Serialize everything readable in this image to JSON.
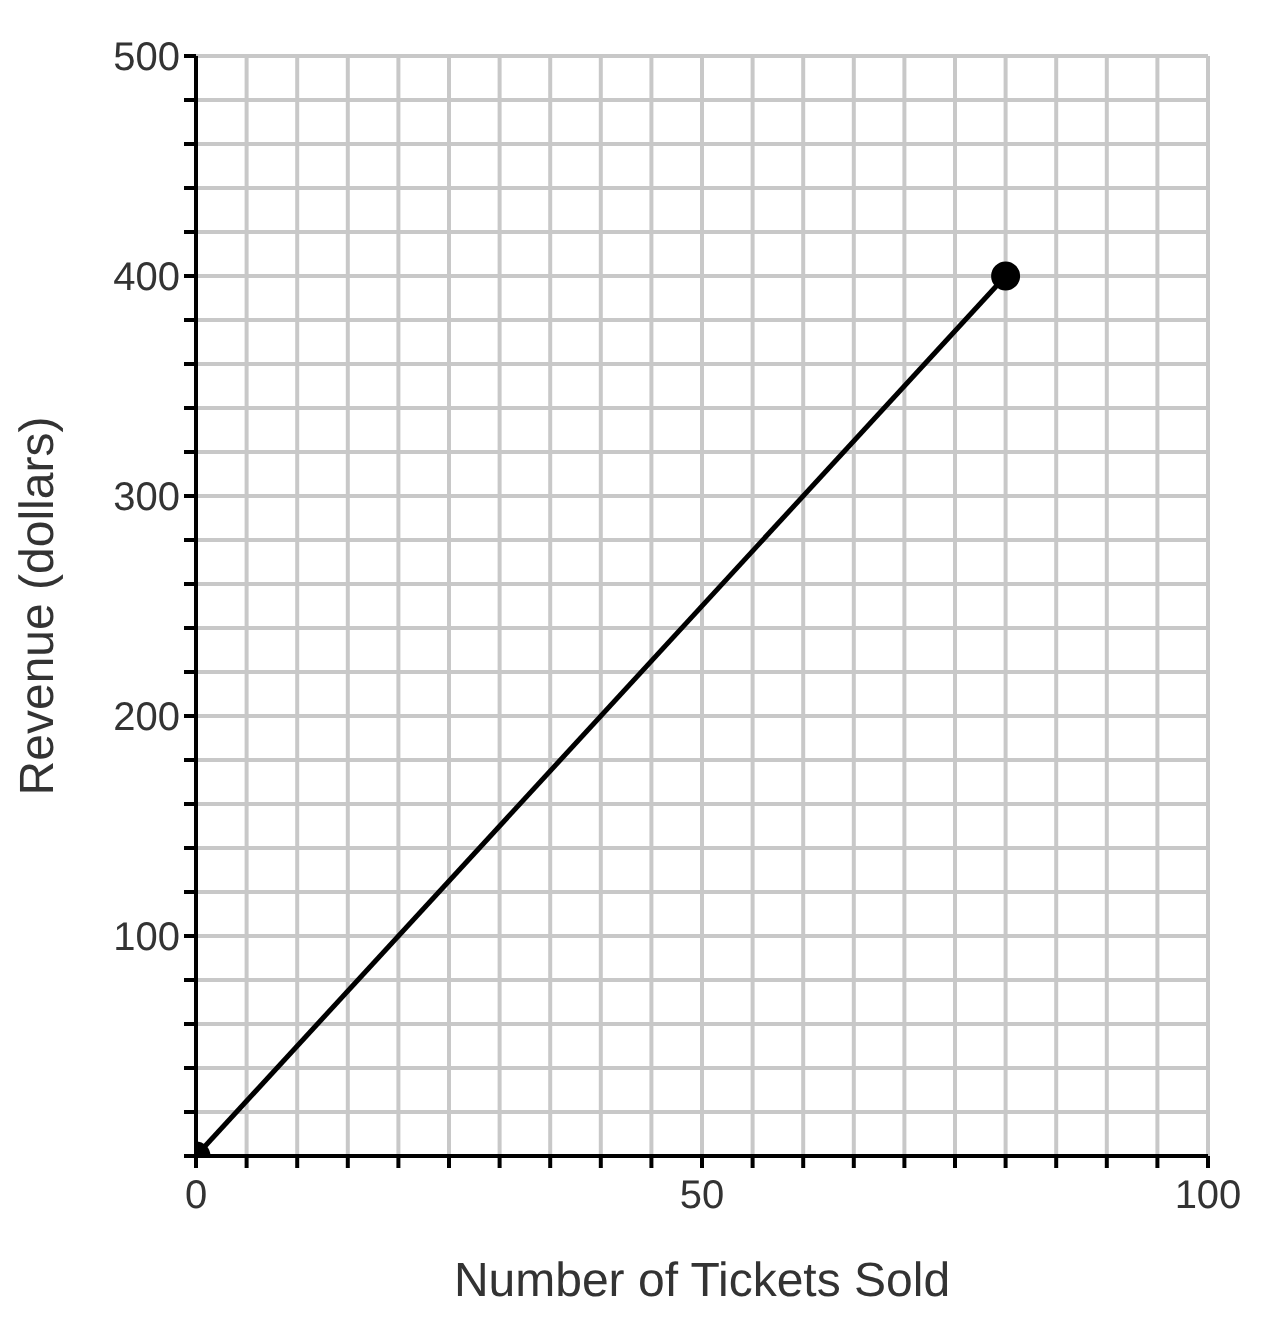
{
  "chart_data": {
    "type": "line",
    "xlabel": "Number of Tickets Sold",
    "ylabel": "Revenue (dollars)",
    "x": [
      0,
      80
    ],
    "series": [
      {
        "color": "#000000",
        "values": [
          0,
          400
        ]
      }
    ],
    "xlim": [
      0,
      100
    ],
    "xticks": [
      0,
      {
        "value": 5,
        "label": null
      },
      {
        "value": 10,
        "label": null
      },
      {
        "value": 15,
        "label": null
      },
      {
        "value": 20,
        "label": null
      },
      {
        "value": 25,
        "label": null
      },
      {
        "value": 30,
        "label": null
      },
      {
        "value": 35,
        "label": null
      },
      {
        "value": 40,
        "label": null
      },
      {
        "value": 45,
        "label": null
      },
      50,
      {
        "value": 55,
        "label": null
      },
      {
        "value": 60,
        "label": null
      },
      {
        "value": 65,
        "label": null
      },
      {
        "value": 70,
        "label": null
      },
      {
        "value": 75,
        "label": null
      },
      {
        "value": 80,
        "label": null
      },
      {
        "value": 85,
        "label": null
      },
      {
        "value": 90,
        "label": null
      },
      {
        "value": 95,
        "label": null
      },
      100
    ],
    "ylim": [
      0,
      500
    ],
    "yticks": [
      {
        "value": 0,
        "label": null
      },
      {
        "value": 20,
        "label": null
      },
      {
        "value": 40,
        "label": null
      },
      {
        "value": 60,
        "label": null
      },
      {
        "value": 80,
        "label": null
      },
      100,
      {
        "value": 120,
        "label": null
      },
      {
        "value": 140,
        "label": null
      },
      {
        "value": 160,
        "label": null
      },
      {
        "value": 180,
        "label": null
      },
      200,
      {
        "value": 220,
        "label": null
      },
      {
        "value": 240,
        "label": null
      },
      {
        "value": 260,
        "label": null
      },
      {
        "value": 280,
        "label": null
      },
      300,
      {
        "value": 320,
        "label": null
      },
      {
        "value": 340,
        "label": null
      },
      {
        "value": 360,
        "label": null
      },
      {
        "value": 380,
        "label": null
      },
      400,
      {
        "value": 420,
        "label": null
      },
      {
        "value": 440,
        "label": null
      },
      {
        "value": 460,
        "label": null
      },
      {
        "value": 480,
        "label": null
      },
      500
    ],
    "grid": true,
    "marker": "circle",
    "line_style": "solid"
  }
}
